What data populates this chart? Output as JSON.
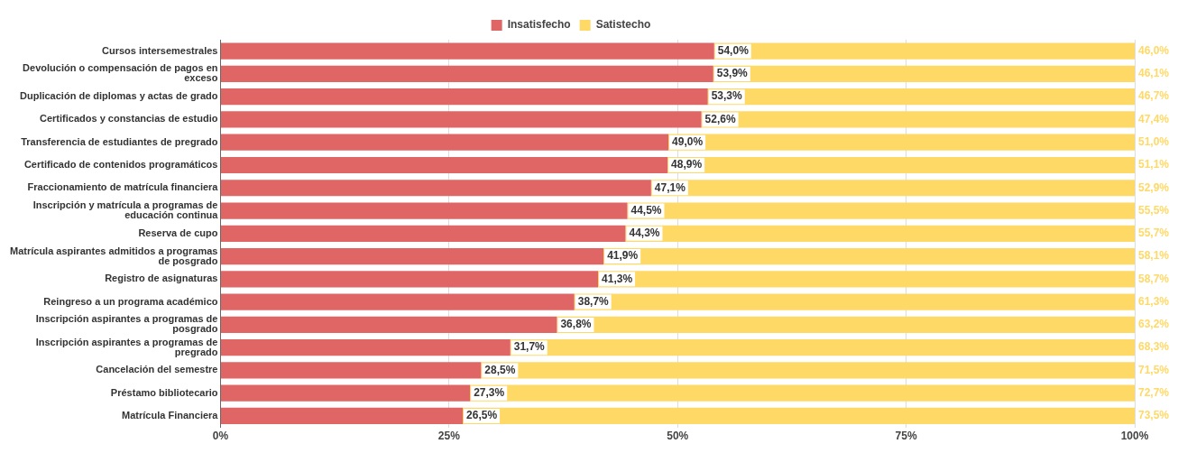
{
  "chart_data": {
    "type": "bar",
    "orientation": "horizontal",
    "stacked": true,
    "legend": "top",
    "grid": "x",
    "categories": [
      "Cursos intersemestrales",
      "Devolución o compensación de pagos en exceso",
      "Duplicación de diplomas y actas de grado",
      "Certificados y constancias de estudio",
      "Transferencia de estudiantes de pregrado",
      "Certificado de contenidos programáticos",
      "Fraccionamiento de matrícula financiera",
      "Inscripción y matrícula a programas de educación continua",
      "Reserva de cupo",
      "Matrícula aspirantes admitidos a programas de posgrado",
      "Registro de asignaturas",
      "Reingreso a un programa académico",
      "Inscripción aspirantes a programas de posgrado",
      "Inscripción aspirantes a programas de pregrado",
      "Cancelación del semestre",
      "Préstamo bibliotecario",
      "Matrícula Financiera"
    ],
    "series": [
      {
        "name": "Insatisfecho",
        "color": "#e06666",
        "values": [
          54.0,
          53.9,
          53.3,
          52.6,
          49.0,
          48.9,
          47.1,
          44.5,
          44.3,
          41.9,
          41.3,
          38.7,
          36.8,
          31.7,
          28.5,
          27.3,
          26.5
        ],
        "value_labels": [
          "54,0%",
          "53,9%",
          "53,3%",
          "52,6%",
          "49,0%",
          "48,9%",
          "47,1%",
          "44,5%",
          "44,3%",
          "41,9%",
          "41,3%",
          "38,7%",
          "36,8%",
          "31,7%",
          "28,5%",
          "27,3%",
          "26,5%"
        ]
      },
      {
        "name": "Satistecho",
        "color": "#ffd966",
        "values": [
          46.0,
          46.1,
          46.7,
          47.4,
          51.0,
          51.1,
          52.9,
          55.5,
          55.7,
          58.1,
          58.7,
          61.3,
          63.2,
          68.3,
          71.5,
          72.7,
          73.5
        ],
        "value_labels": [
          "46,0%",
          "46,1%",
          "46,7%",
          "47,4%",
          "51,0%",
          "51,1%",
          "52,9%",
          "55,5%",
          "55,7%",
          "58,1%",
          "58,7%",
          "61,3%",
          "63,2%",
          "68,3%",
          "71,5%",
          "72,7%",
          "73,5%"
        ]
      }
    ],
    "xlim": [
      0,
      100
    ],
    "xticks": [
      {
        "value": 0,
        "label": "0%"
      },
      {
        "value": 25,
        "label": "25%"
      },
      {
        "value": 50,
        "label": "50%"
      },
      {
        "value": 75,
        "label": "75%"
      },
      {
        "value": 100,
        "label": "100%"
      }
    ]
  }
}
